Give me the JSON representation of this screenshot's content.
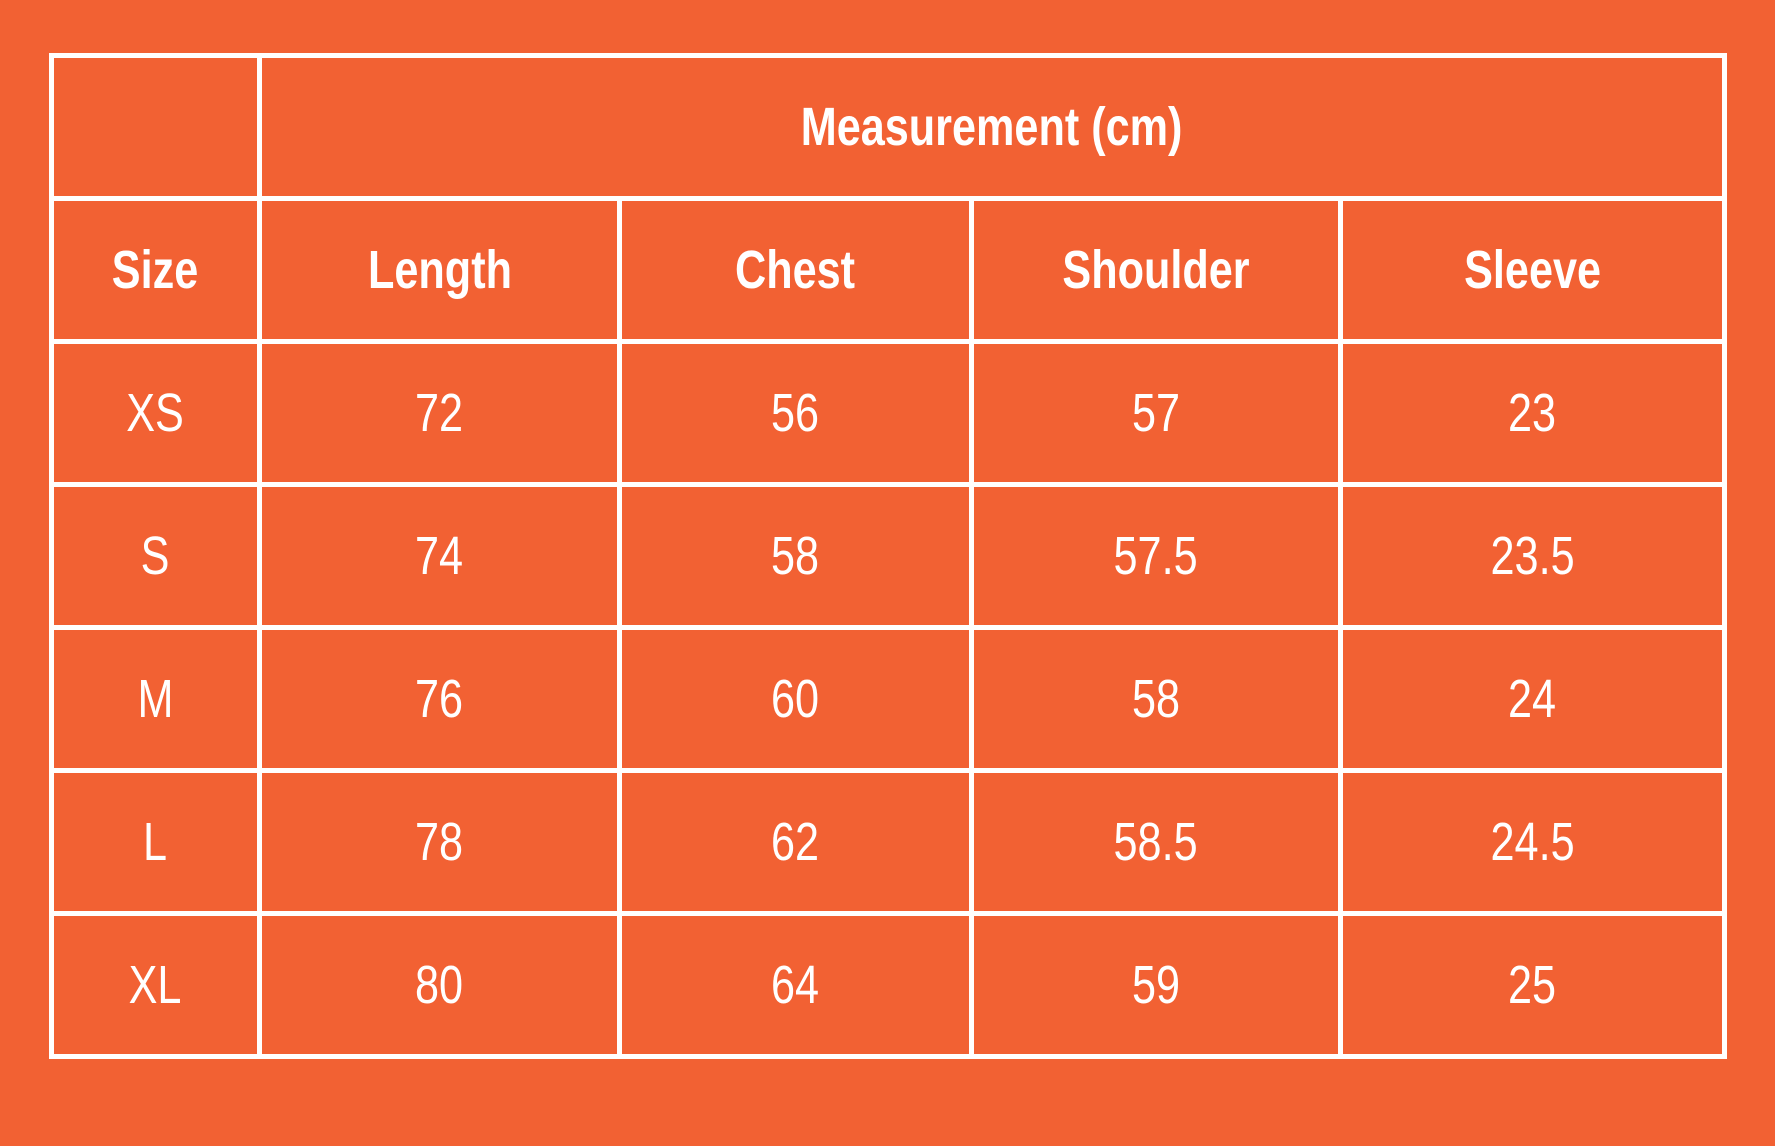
{
  "table": {
    "group_header": "Measurement (cm)",
    "columns": [
      "Size",
      "Length",
      "Chest",
      "Shoulder",
      "Sleeve"
    ],
    "rows": [
      [
        "XS",
        "72",
        "56",
        "57",
        "23"
      ],
      [
        "S",
        "74",
        "58",
        "57.5",
        "23.5"
      ],
      [
        "M",
        "76",
        "60",
        "58",
        "24"
      ],
      [
        "L",
        "78",
        "62",
        "58.5",
        "24.5"
      ],
      [
        "XL",
        "80",
        "64",
        "59",
        "25"
      ]
    ]
  },
  "colors": {
    "background": "#F26133",
    "lines_and_text": "#FFFFFF"
  }
}
